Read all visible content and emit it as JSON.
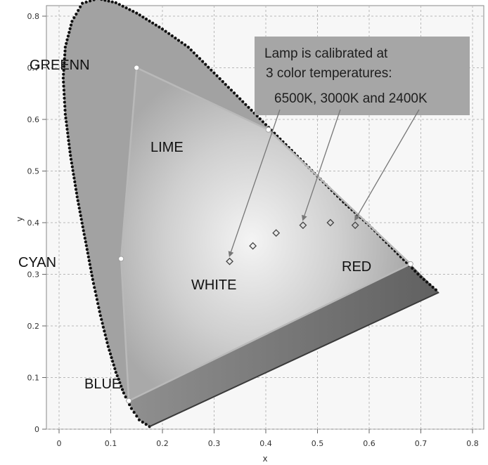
{
  "chart_data": {
    "type": "scatter",
    "xlabel": "x",
    "ylabel": "y",
    "xlim": [
      0,
      0.8
    ],
    "ylim": [
      0,
      0.85
    ],
    "x_ticks": [
      "0",
      "0.1",
      "0.2",
      "0.3",
      "0.4",
      "0.5",
      "0.6",
      "0.7",
      "0.8"
    ],
    "y_ticks": [
      "0",
      "0.1",
      "0.2",
      "0.3",
      "0.4",
      "0.5",
      "0.6",
      "0.7",
      "0.8"
    ],
    "grid": true,
    "spectral_locus": [
      [
        0.175,
        0.005
      ],
      [
        0.155,
        0.018
      ],
      [
        0.14,
        0.04
      ],
      [
        0.125,
        0.07
      ],
      [
        0.11,
        0.11
      ],
      [
        0.095,
        0.16
      ],
      [
        0.08,
        0.22
      ],
      [
        0.065,
        0.29
      ],
      [
        0.05,
        0.37
      ],
      [
        0.035,
        0.45
      ],
      [
        0.022,
        0.53
      ],
      [
        0.012,
        0.61
      ],
      [
        0.008,
        0.68
      ],
      [
        0.012,
        0.74
      ],
      [
        0.025,
        0.79
      ],
      [
        0.045,
        0.825
      ],
      [
        0.075,
        0.834
      ],
      [
        0.11,
        0.826
      ],
      [
        0.15,
        0.806
      ],
      [
        0.2,
        0.775
      ],
      [
        0.25,
        0.74
      ],
      [
        0.3,
        0.69
      ],
      [
        0.35,
        0.64
      ],
      [
        0.4,
        0.59
      ],
      [
        0.45,
        0.54
      ],
      [
        0.5,
        0.49
      ],
      [
        0.55,
        0.44
      ],
      [
        0.6,
        0.395
      ],
      [
        0.65,
        0.345
      ],
      [
        0.7,
        0.295
      ],
      [
        0.735,
        0.265
      ]
    ],
    "gamut_points": [
      {
        "label": "GREENN",
        "x": 0.15,
        "y": 0.7
      },
      {
        "label": "LIME",
        "x": 0.405,
        "y": 0.58
      },
      {
        "label": "RED",
        "x": 0.68,
        "y": 0.32
      },
      {
        "label": "BLUE",
        "x": 0.135,
        "y": 0.055
      },
      {
        "label": "CYAN",
        "x": 0.12,
        "y": 0.33
      },
      {
        "label": "WHITE",
        "x": 0.33,
        "y": 0.325
      }
    ],
    "calibration_points": [
      {
        "x": 0.33,
        "y": 0.325
      },
      {
        "x": 0.375,
        "y": 0.355
      },
      {
        "x": 0.42,
        "y": 0.38
      },
      {
        "x": 0.472,
        "y": 0.395
      },
      {
        "x": 0.525,
        "y": 0.4
      },
      {
        "x": 0.573,
        "y": 0.395
      }
    ],
    "annotation": {
      "lines": [
        "Lamp is calibrated at",
        "3 color temperatures:",
        "6500K, 3000K and 2400K"
      ],
      "arrow_targets": [
        {
          "x": 0.33,
          "y": 0.325
        },
        {
          "x": 0.472,
          "y": 0.395
        },
        {
          "x": 0.573,
          "y": 0.395
        }
      ]
    }
  }
}
